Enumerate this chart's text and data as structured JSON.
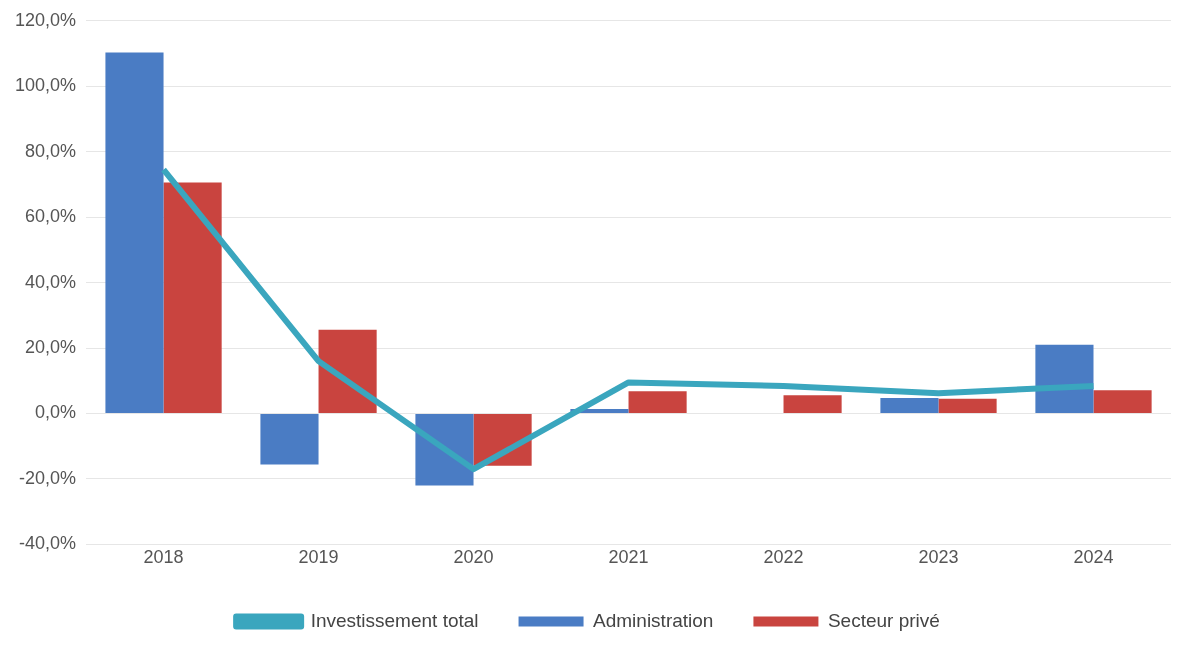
{
  "chart_data": {
    "type": "bar",
    "categories": [
      "2018",
      "2019",
      "2020",
      "2021",
      "2022",
      "2023",
      "2024"
    ],
    "series": [
      {
        "name": "Administration",
        "color": "#4a7cc4",
        "values": [
          110.3,
          -15.6,
          -22,
          1.4,
          0,
          4.7,
          21
        ]
      },
      {
        "name": "Secteur privé",
        "color": "#c9443f",
        "values": [
          70.6,
          25.6,
          -16,
          6.8,
          5.6,
          4.5,
          7.1
        ]
      },
      {
        "name": "Investissement total",
        "type": "line",
        "color": "#3aa6be",
        "values": [
          74.5,
          16,
          -17,
          9.5,
          8.4,
          6.2,
          8.4
        ]
      }
    ],
    "ylim": [
      -40,
      120
    ],
    "yticks": [
      {
        "value": -40,
        "label": "-40,0%"
      },
      {
        "value": -20,
        "label": "-20,0%"
      },
      {
        "value": 0,
        "label": "0,0%"
      },
      {
        "value": 20,
        "label": "20,0%"
      },
      {
        "value": 40,
        "label": "40,0%"
      },
      {
        "value": 60,
        "label": "60,0%"
      },
      {
        "value": 80,
        "label": "80,0%"
      },
      {
        "value": 100,
        "label": "100,0%"
      },
      {
        "value": 120,
        "label": "120,0%"
      }
    ],
    "grid": "y",
    "legend": "bottom",
    "marker": "none"
  }
}
